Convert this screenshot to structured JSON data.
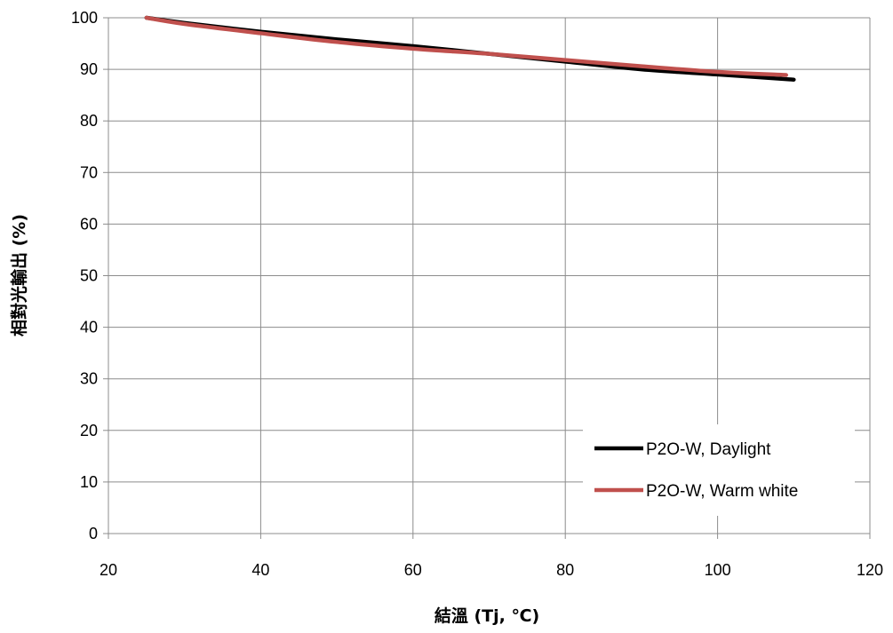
{
  "chart_data": {
    "type": "line",
    "title": "",
    "xlabel": "結溫 (Tj, ℃)",
    "ylabel": "相對光輸出 (%)",
    "xlim": [
      20,
      120
    ],
    "ylim": [
      0,
      100
    ],
    "xticks": [
      20,
      40,
      60,
      80,
      100,
      120
    ],
    "yticks": [
      0,
      10,
      20,
      30,
      40,
      50,
      60,
      70,
      80,
      90,
      100
    ],
    "grid": true,
    "legend_position": "bottom-right",
    "series": [
      {
        "name": "P2O-W, Daylight",
        "color": "#000000",
        "x": [
          25,
          30,
          40,
          50,
          60,
          70,
          80,
          90,
          100,
          110
        ],
        "y": [
          100,
          99,
          97.3,
          95.8,
          94.5,
          93,
          91.5,
          90,
          89,
          88
        ]
      },
      {
        "name": "P2O-W, Warm white",
        "color": "#c0504d",
        "x": [
          25,
          30,
          40,
          50,
          60,
          70,
          80,
          90,
          100,
          109
        ],
        "y": [
          100,
          98.8,
          97,
          95.3,
          94,
          93,
          91.8,
          90.6,
          89.5,
          88.9
        ]
      }
    ]
  }
}
